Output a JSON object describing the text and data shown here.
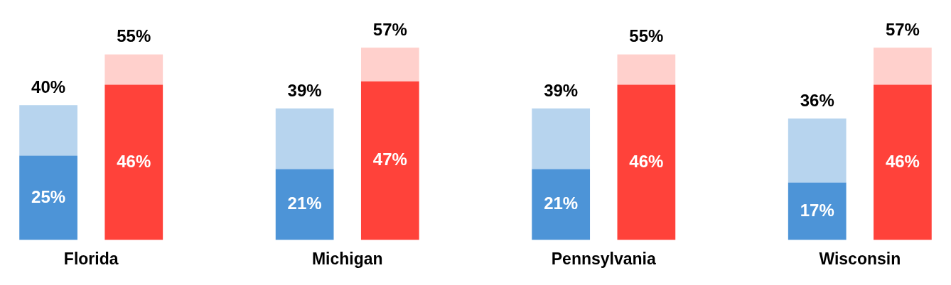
{
  "chart_data": {
    "type": "bar",
    "stacked": true,
    "categories": [
      "Florida",
      null,
      null,
      "Michigan",
      null,
      null,
      "Pennsylvania",
      null,
      null,
      "Wisconsin",
      null
    ],
    "series": [
      {
        "colors": [
          "#4d94d7",
          "#ff423a",
          null,
          "#4d94d7",
          "#ff423a",
          null,
          "#4d94d7",
          "#ff423a",
          null,
          "#4d94d7",
          "#ff423a"
        ],
        "values": [
          25,
          46,
          null,
          21,
          47,
          null,
          21,
          46,
          null,
          17,
          46
        ],
        "value_labels": [
          "25%",
          "46%",
          null,
          "21%",
          "47%",
          null,
          "21%",
          "46%",
          null,
          "17%",
          "46%"
        ]
      },
      {
        "colors": [
          "#b7d4ee",
          "#ffd0cc",
          null,
          "#b7d4ee",
          "#ffd0cc",
          null,
          "#b7d4ee",
          "#ffd0cc",
          null,
          "#b7d4ee",
          "#ffd0cc"
        ],
        "values": [
          15,
          9,
          null,
          18,
          10,
          null,
          18,
          9,
          null,
          19,
          11
        ]
      }
    ],
    "totals": [
      "40%",
      "55%",
      null,
      "39%",
      "57%",
      null,
      "39%",
      "55%",
      null,
      "36%",
      "57%"
    ],
    "tick_labels": "x",
    "grid": false,
    "legend": false
  }
}
